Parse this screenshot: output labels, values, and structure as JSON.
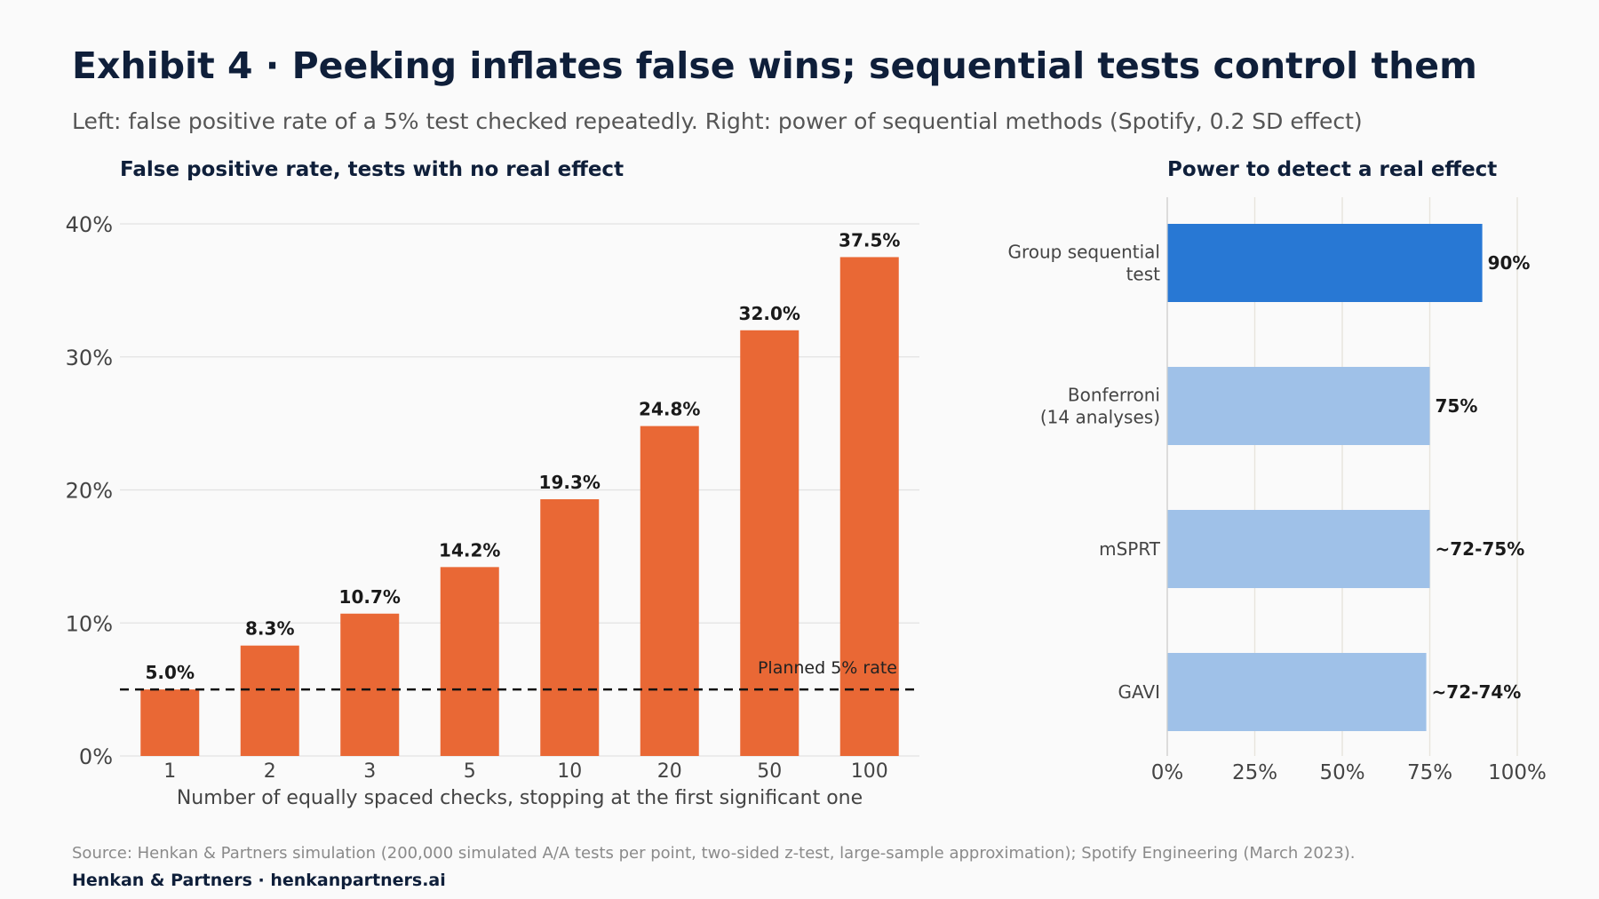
{
  "title": "Exhibit 4 · Peeking inflates false wins; sequential tests control them",
  "subtitle": "Left: false positive rate of a 5% test checked repeatedly. Right: power of sequential methods (Spotify, 0.2 SD effect)",
  "footer": {
    "source": "Source: Henkan & Partners simulation (200,000 simulated A/A tests per point, two-sided z-test, large-sample approximation); Spotify Engineering (March 2023).",
    "brand": "Henkan & Partners · henkanpartners.ai"
  },
  "colors": {
    "left_bar": "#e96835",
    "highlight_bar": "#2878d4",
    "muted_bar": "#9fc1e8",
    "title": "#0f1f3a",
    "grid": "#e2e2e2"
  },
  "chart_data": [
    {
      "type": "bar",
      "title": "False positive rate, tests with no real effect",
      "xlabel": "Number of equally spaced checks, stopping at the first significant one",
      "ylabel": "",
      "categories": [
        "1",
        "2",
        "3",
        "5",
        "10",
        "20",
        "50",
        "100"
      ],
      "values": [
        5.0,
        8.3,
        10.7,
        14.2,
        19.3,
        24.8,
        32.0,
        37.5
      ],
      "value_labels": [
        "5.0%",
        "8.3%",
        "10.7%",
        "14.2%",
        "19.3%",
        "24.8%",
        "32.0%",
        "37.5%"
      ],
      "ylim": [
        0,
        40
      ],
      "yticks": [
        0,
        10,
        20,
        30,
        40
      ],
      "ytick_labels": [
        "0%",
        "10%",
        "20%",
        "30%",
        "40%"
      ],
      "reference_line": {
        "value": 5,
        "label": "Planned 5% rate",
        "style": "dashed"
      },
      "grid": true
    },
    {
      "type": "bar",
      "orientation": "horizontal",
      "title": "Power to detect a real effect",
      "categories": [
        [
          "Group sequential",
          "test"
        ],
        [
          "Bonferroni",
          "(14 analyses)"
        ],
        [
          "mSPRT"
        ],
        [
          "GAVI"
        ]
      ],
      "values": [
        90,
        75,
        75,
        74
      ],
      "value_labels": [
        "90%",
        "75%",
        "~72-75%",
        "~72-74%"
      ],
      "highlight": [
        true,
        false,
        false,
        false
      ],
      "xlim": [
        0,
        100
      ],
      "xticks": [
        0,
        25,
        50,
        75,
        100
      ],
      "xtick_labels": [
        "0%",
        "25%",
        "50%",
        "75%",
        "100%"
      ],
      "grid": true
    }
  ]
}
